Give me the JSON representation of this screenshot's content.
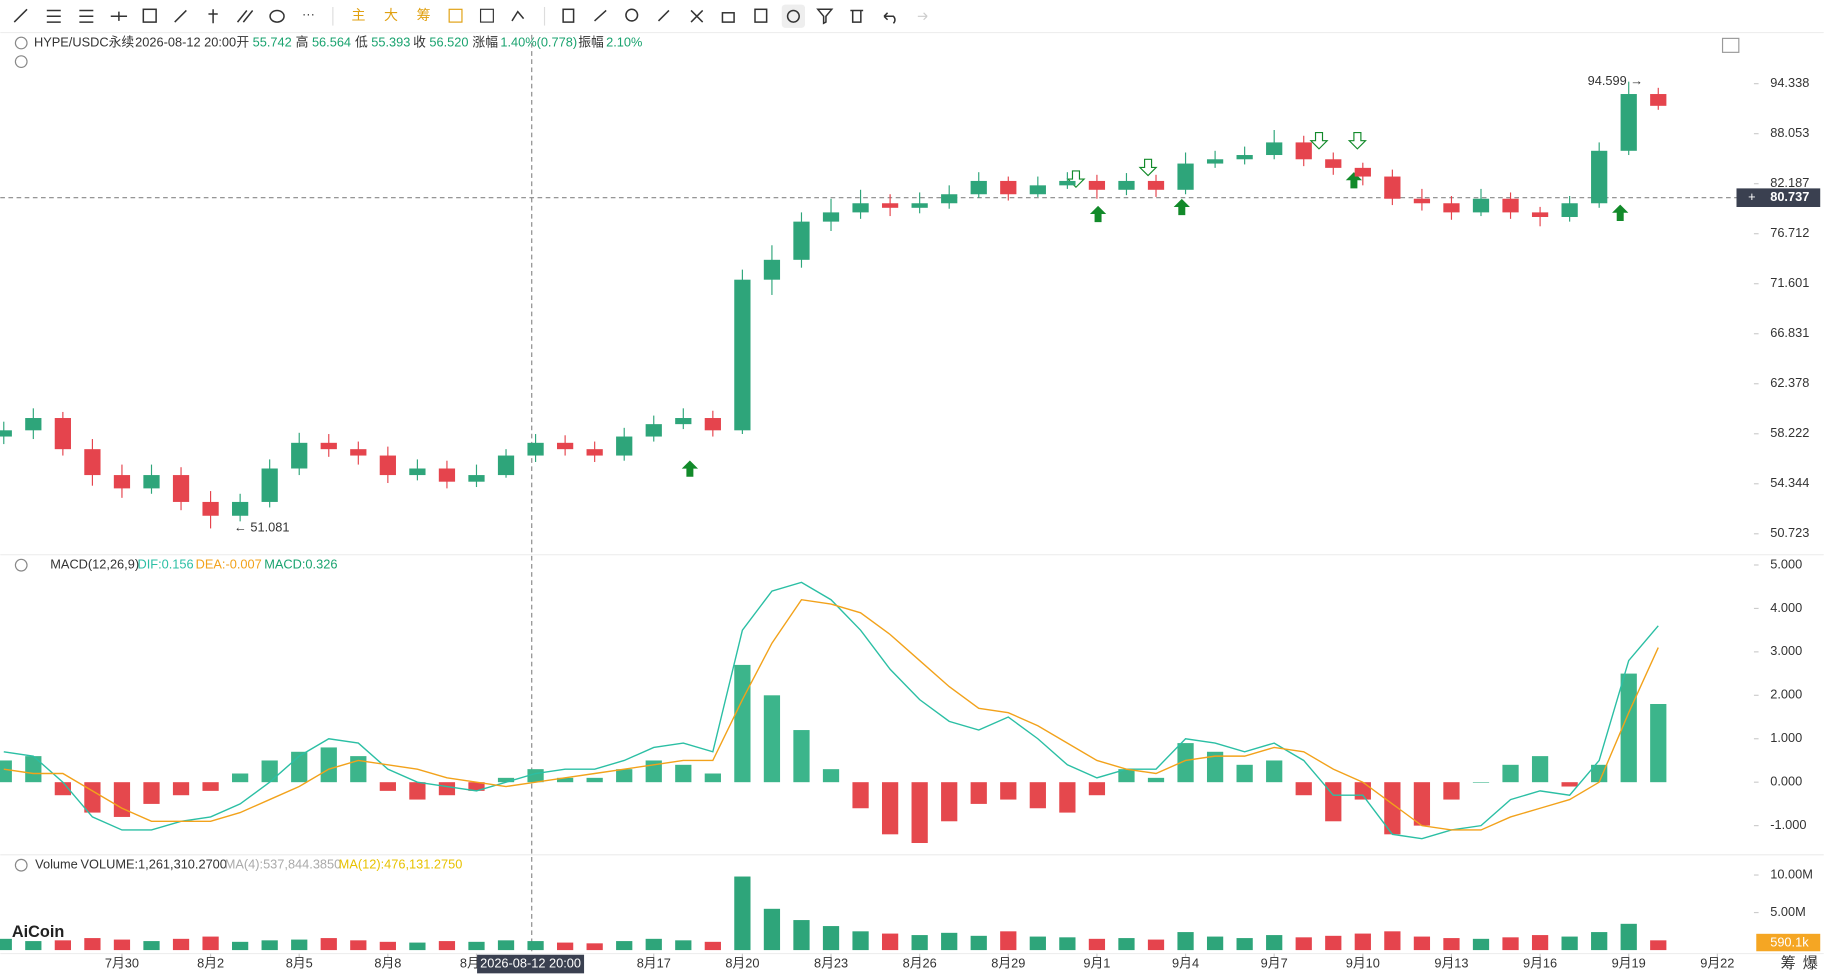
{
  "toolbar": {
    "main": "主",
    "big": "大",
    "chips": "筹"
  },
  "footer": {
    "chips": "筹",
    "liq": "爆"
  },
  "logo": "AiCoin",
  "crosshair_time": "2026-08-12 20:00",
  "last_price": "80.737",
  "last_volume": "590.1k",
  "header": {
    "symbol": "HYPE/USDC永续",
    "time": "2026-08-12 20:00",
    "open_label": "开",
    "open": "55.742",
    "high_label": "高",
    "high": "56.564",
    "low_label": "低",
    "low": "55.393",
    "close_label": "收",
    "close": "56.520",
    "change_label": "涨幅",
    "change": "1.40%(0.778)",
    "amp_label": "振幅",
    "amp": "2.10%"
  },
  "chart_data": [
    {
      "type": "candlestick",
      "log_scale": true,
      "up_color": "#2ea57a",
      "down_color": "#e5444d",
      "xlim": [
        0,
        61.6
      ],
      "ylim": [
        49.44,
        100.9
      ],
      "yticks": [
        94.338,
        88.053,
        82.187,
        76.712,
        71.601,
        66.831,
        62.378,
        58.222,
        54.344,
        50.723
      ],
      "annotations": [
        {
          "text": "94.599 →"
        },
        {
          "text": "← 51.081"
        }
      ],
      "open": [
        58,
        58.5,
        59.5,
        57,
        55,
        54,
        55,
        53,
        52,
        53,
        55.5,
        57.5,
        57,
        56.5,
        55,
        55.5,
        54.5,
        55,
        56.5,
        57.5,
        57,
        56.5,
        58,
        59,
        59.5,
        58.5,
        72,
        74,
        78,
        79,
        80,
        79.5,
        80,
        81,
        82.5,
        81,
        82,
        82.5,
        81.5,
        82.5,
        81.5,
        84.5,
        85,
        85.5,
        87,
        85,
        84,
        83,
        80.5,
        80,
        79,
        80.5,
        79,
        78.5,
        80,
        86,
        93
      ],
      "high": [
        59.2,
        60.3,
        60,
        57.8,
        55.8,
        55.8,
        55.6,
        53.8,
        53.6,
        56.2,
        58.3,
        58.2,
        57.6,
        57.2,
        56.2,
        56.1,
        55.8,
        57,
        58.2,
        58.1,
        57.6,
        58.7,
        59.7,
        60.3,
        60.1,
        73,
        75.5,
        79,
        80.5,
        81.5,
        81,
        81.2,
        82,
        83.5,
        83,
        83,
        83.5,
        83.2,
        83.4,
        83.2,
        85.8,
        86,
        86.5,
        88.5,
        87.8,
        85.8,
        84.6,
        83.8,
        81.6,
        80.8,
        81.6,
        81.2,
        79.6,
        80.8,
        87,
        94.6,
        93.8
      ],
      "low": [
        57.4,
        57.8,
        56.5,
        54.2,
        53.3,
        53.6,
        52.4,
        51.1,
        51.6,
        52.6,
        55,
        56.4,
        55.8,
        54.4,
        54.6,
        54,
        54.1,
        54.8,
        56,
        56.5,
        56,
        56.1,
        57.6,
        58.6,
        58,
        58.2,
        70.5,
        73.2,
        77,
        78.3,
        78.6,
        78.9,
        79.4,
        80.6,
        80.3,
        80.7,
        81.6,
        80.5,
        80.9,
        80.7,
        81,
        84,
        84.4,
        85,
        84.2,
        83.2,
        82,
        79.8,
        79.2,
        78.2,
        78.6,
        78.3,
        77.5,
        78,
        79.5,
        85.5,
        91
      ],
      "close": [
        58.5,
        59.5,
        57,
        55,
        54,
        55,
        53,
        52,
        53,
        55.5,
        57.5,
        57,
        56.5,
        55,
        55.5,
        54.5,
        55,
        56.5,
        57.5,
        57,
        56.5,
        58,
        59,
        59.5,
        58.5,
        72,
        74,
        78,
        79,
        80,
        79.5,
        80,
        81,
        82.5,
        81,
        82,
        82.5,
        81.5,
        82.5,
        81.5,
        84.5,
        85,
        85.5,
        87,
        85,
        84,
        83,
        80.5,
        80,
        79,
        80.5,
        79,
        78.5,
        80,
        86,
        93,
        91.5
      ]
    },
    {
      "type": "macd",
      "title": "MACD(12,26,9)",
      "dif_label": "DIF:0.156",
      "dea_label": "DEA:-0.007",
      "macd_label": "MACD:0.326",
      "xlim": [
        0,
        61.6
      ],
      "ylim": [
        -1.67,
        5.21
      ],
      "yticks": [
        {
          "value": 5,
          "label": "5.000"
        },
        {
          "value": 4,
          "label": "4.000"
        },
        {
          "value": 3,
          "label": "3.000"
        },
        {
          "value": 2,
          "label": "2.000"
        },
        {
          "value": 1,
          "label": "1.000"
        },
        {
          "value": 0,
          "label": "0.000"
        },
        {
          "value": -1,
          "label": "-1.000"
        }
      ],
      "histogram": {
        "up_color": "#3cb58b",
        "down_color": "#e5484d",
        "values": [
          0.5,
          0.6,
          -0.3,
          -0.7,
          -0.8,
          -0.5,
          -0.3,
          -0.2,
          0.2,
          0.5,
          0.7,
          0.8,
          0.6,
          -0.2,
          -0.4,
          -0.3,
          -0.2,
          0.1,
          0.3,
          0.1,
          0.1,
          0.3,
          0.5,
          0.4,
          0.2,
          2.7,
          2.0,
          1.2,
          0.3,
          -0.6,
          -1.2,
          -1.4,
          -0.9,
          -0.5,
          -0.4,
          -0.6,
          -0.7,
          -0.3,
          0.3,
          0.1,
          0.9,
          0.7,
          0.4,
          0.5,
          -0.3,
          -0.9,
          -0.4,
          -1.2,
          -1.0,
          -0.4,
          0.0,
          0.4,
          0.6,
          -0.1,
          0.4,
          2.5,
          1.8
        ]
      },
      "series": [
        {
          "color": "#2bbfa4",
          "values": [
            0.7,
            0.6,
            0.0,
            -0.8,
            -1.1,
            -1.1,
            -0.9,
            -0.8,
            -0.5,
            0.0,
            0.6,
            1.0,
            0.9,
            0.3,
            0.0,
            -0.1,
            -0.2,
            0.0,
            0.2,
            0.3,
            0.3,
            0.5,
            0.8,
            0.9,
            0.7,
            3.5,
            4.4,
            4.6,
            4.2,
            3.5,
            2.6,
            1.9,
            1.4,
            1.2,
            1.5,
            1.0,
            0.4,
            0.1,
            0.3,
            0.3,
            1.0,
            0.9,
            0.7,
            0.9,
            0.5,
            -0.3,
            -0.3,
            -1.2,
            -1.3,
            -1.1,
            -1.0,
            -0.4,
            -0.2,
            -0.3,
            0.5,
            2.8,
            3.6
          ]
        },
        {
          "color": "#f2a21b",
          "values": [
            0.3,
            0.2,
            0.2,
            -0.2,
            -0.6,
            -0.9,
            -0.9,
            -0.9,
            -0.7,
            -0.4,
            -0.1,
            0.3,
            0.5,
            0.4,
            0.3,
            0.1,
            0.0,
            -0.1,
            0.0,
            0.1,
            0.2,
            0.3,
            0.4,
            0.5,
            0.5,
            1.9,
            3.2,
            4.2,
            4.1,
            3.9,
            3.4,
            2.8,
            2.2,
            1.7,
            1.6,
            1.3,
            0.9,
            0.5,
            0.3,
            0.2,
            0.5,
            0.6,
            0.6,
            0.8,
            0.7,
            0.3,
            0.0,
            -0.5,
            -1.0,
            -1.1,
            -1.1,
            -0.8,
            -0.6,
            -0.4,
            0.0,
            1.6,
            3.1
          ]
        }
      ]
    },
    {
      "type": "volume",
      "title": "Volume",
      "volume_label": "VOLUME:1,261,310.2700",
      "ma4_label": "MA(4):537,844.3850",
      "ma12_label": "MA(12):476,131.2750",
      "xlim": [
        0,
        61.6
      ],
      "ylim": [
        0,
        11000000
      ],
      "yticks": [
        {
          "value": 10000000,
          "label": "10.00M"
        },
        {
          "value": 5000000,
          "label": "5.00M"
        }
      ],
      "xticks": [
        {
          "value": 4,
          "label": "7月30"
        },
        {
          "value": 7,
          "label": "8月2"
        },
        {
          "value": 10,
          "label": "8月5"
        },
        {
          "value": 13,
          "label": "8月8"
        },
        {
          "value": 16,
          "label": "8月11"
        },
        {
          "value": 22,
          "label": "8月17"
        },
        {
          "value": 25,
          "label": "8月20"
        },
        {
          "value": 28,
          "label": "8月23"
        },
        {
          "value": 31,
          "label": "8月26"
        },
        {
          "value": 34,
          "label": "8月29"
        },
        {
          "value": 37,
          "label": "9月1"
        },
        {
          "value": 40,
          "label": "9月4"
        },
        {
          "value": 43,
          "label": "9月7"
        },
        {
          "value": 46,
          "label": "9月10"
        },
        {
          "value": 49,
          "label": "9月13"
        },
        {
          "value": 52,
          "label": "9月16"
        },
        {
          "value": 55,
          "label": "9月19"
        },
        {
          "value": 58,
          "label": "9月22"
        }
      ],
      "values": [
        1500000,
        1200000,
        1300000,
        1600000,
        1400000,
        1200000,
        1500000,
        1800000,
        1100000,
        1300000,
        1400000,
        1600000,
        1300000,
        1100000,
        1000000,
        1200000,
        1100000,
        1300000,
        1200000,
        1000000,
        900000,
        1200000,
        1500000,
        1300000,
        1100000,
        9800000,
        5500000,
        4000000,
        3200000,
        2500000,
        2200000,
        2000000,
        2300000,
        1900000,
        2500000,
        1800000,
        1700000,
        1500000,
        1600000,
        1400000,
        2400000,
        1800000,
        1600000,
        2000000,
        1700000,
        1900000,
        2200000,
        2500000,
        1800000,
        1600000,
        1500000,
        1700000,
        2000000,
        1800000,
        2400000,
        3500000,
        1300000
      ]
    }
  ]
}
